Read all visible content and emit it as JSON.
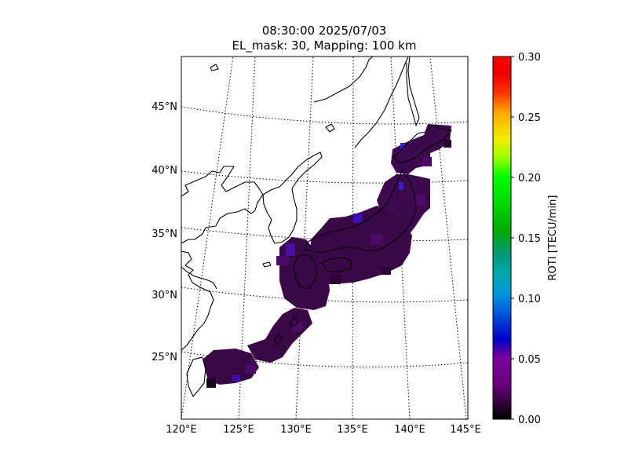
{
  "figure": {
    "title_line1": "08:30:00 2025/07/03",
    "title_line2": "EL_mask: 30, Mapping: 100 km"
  },
  "map": {
    "lat_ticks": [
      "25°N",
      "30°N",
      "35°N",
      "40°N",
      "45°N"
    ],
    "lon_ticks": [
      "120°E",
      "125°E",
      "130°E",
      "135°E",
      "140°E",
      "145°E"
    ],
    "coastline_color": "#000000",
    "graticule_style": "dotted"
  },
  "colorbar": {
    "label": "ROTI [TECU/min]",
    "ticks": [
      "0.00",
      "0.05",
      "0.10",
      "0.15",
      "0.20",
      "0.25",
      "0.30"
    ],
    "range": [
      0.0,
      0.3
    ],
    "colormap": "nipy_spectral"
  },
  "chart_data": {
    "type": "heatmap",
    "description_values": "ROTI values over Japan mostly between 0.02 and 0.05 TECU/min",
    "xlabel": "",
    "ylabel": "",
    "xlim": [
      120,
      145
    ],
    "ylim": [
      20,
      49
    ],
    "value_range": [
      0.0,
      0.3
    ],
    "cells": [
      {
        "lon": 122.5,
        "lat": 24.5,
        "value": 0.03
      },
      {
        "lon": 123.5,
        "lat": 24.5,
        "value": 0.03
      },
      {
        "lon": 124.5,
        "lat": 24.0,
        "value": 0.035
      },
      {
        "lon": 125.5,
        "lat": 24.3,
        "value": 0.03
      },
      {
        "lon": 127.0,
        "lat": 25.5,
        "value": 0.035
      },
      {
        "lon": 128.0,
        "lat": 26.5,
        "value": 0.03
      },
      {
        "lon": 129.5,
        "lat": 28.0,
        "value": 0.035
      },
      {
        "lon": 130.5,
        "lat": 30.0,
        "value": 0.03
      },
      {
        "lon": 131.0,
        "lat": 32.0,
        "value": 0.03
      },
      {
        "lon": 133.0,
        "lat": 33.5,
        "value": 0.03
      },
      {
        "lon": 135.0,
        "lat": 34.5,
        "value": 0.035
      },
      {
        "lon": 137.0,
        "lat": 35.5,
        "value": 0.03
      },
      {
        "lon": 139.0,
        "lat": 36.0,
        "value": 0.035
      },
      {
        "lon": 140.0,
        "lat": 38.5,
        "value": 0.03
      },
      {
        "lon": 140.5,
        "lat": 40.5,
        "value": 0.035
      },
      {
        "lon": 142.5,
        "lat": 43.0,
        "value": 0.03
      },
      {
        "lon": 134.5,
        "lat": 35.8,
        "value": 0.05
      },
      {
        "lon": 139.5,
        "lat": 38.0,
        "value": 0.05
      },
      {
        "lon": 124.5,
        "lat": 23.5,
        "value": 0.05
      }
    ]
  }
}
